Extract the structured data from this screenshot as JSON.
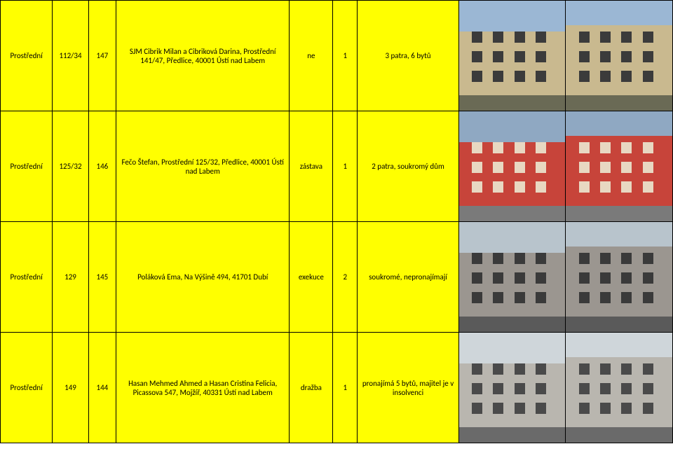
{
  "colors": {
    "row_bg": "#ffff00",
    "border": "#000000",
    "text": "#000000"
  },
  "photos": [
    {
      "sky": "#9bb7d4",
      "facade": "#c9b98f",
      "ground": "#6a6a55",
      "accent": "#3b3b3b"
    },
    {
      "sky": "#8fa8c2",
      "facade": "#c7443a",
      "ground": "#7a7a7a",
      "accent": "#e8d8c2"
    },
    {
      "sky": "#b8c4cc",
      "facade": "#9b9690",
      "ground": "#5a5a5a",
      "accent": "#3a3a3a"
    },
    {
      "sky": "#cfd6da",
      "facade": "#b9b6af",
      "ground": "#6a6a6a",
      "accent": "#4a4a4a"
    }
  ],
  "rows": [
    {
      "street": "Prostřední",
      "parcel": "112/34",
      "num": "147",
      "owner": "SJM Cibrik Milan a Cibriková Darina, Prostřední 141/47, Předlice, 40001 Ústí nad Labem",
      "status": "ne",
      "count": "1",
      "info": "3 patra, 6 bytů"
    },
    {
      "street": "Prostřední",
      "parcel": "125/32",
      "num": "146",
      "owner": "Fečo Štefan, Prostřední 125/32, Předlice, 40001 Ústí nad Labem",
      "status": "zástava",
      "count": "1",
      "info": "2 patra, soukromý dům"
    },
    {
      "street": "Prostřední",
      "parcel": "129",
      "num": "145",
      "owner": "Poláková Ema, Na Výšině 494, 41701 Dubí",
      "status": "exekuce",
      "count": "2",
      "info": "soukromé, nepronajímají"
    },
    {
      "street": "Prostřední",
      "parcel": "149",
      "num": "144",
      "owner": "Hasan Mehmed Ahmed a Hasan Cristina Felicia, Picassova 547, Mojžíř, 40331 Ústí nad Labem",
      "status": "dražba",
      "count": "1",
      "info": "pronajímá 5 bytů, majitel je v insolvenci"
    }
  ]
}
